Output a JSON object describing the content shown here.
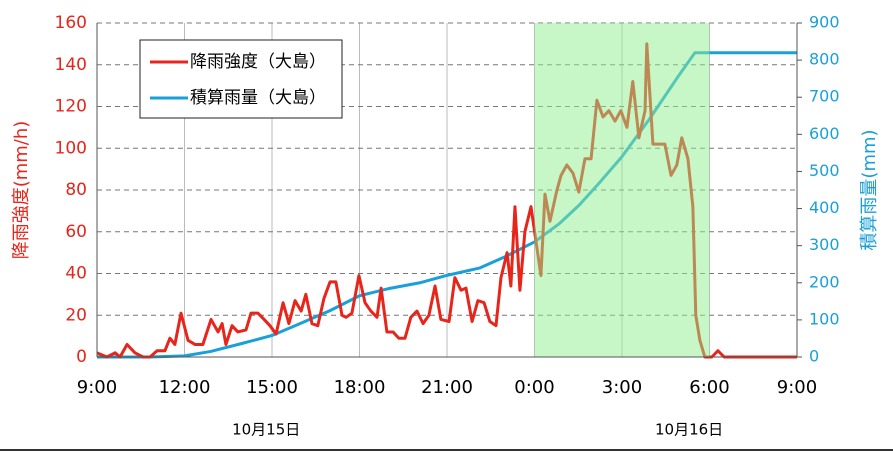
{
  "chart_data": {
    "type": "line",
    "xlim": [
      0,
      24
    ],
    "xticks": [
      {
        "value": 0,
        "label": "9:00"
      },
      {
        "value": 3,
        "label": "12:00"
      },
      {
        "value": 6,
        "label": "15:00"
      },
      {
        "value": 9,
        "label": "18:00"
      },
      {
        "value": 12,
        "label": "21:00"
      },
      {
        "value": 15,
        "label": "0:00"
      },
      {
        "value": 18,
        "label": "3:00"
      },
      {
        "value": 21,
        "label": "6:00"
      },
      {
        "value": 24,
        "label": "9:00"
      }
    ],
    "ylim": [
      0,
      160
    ],
    "yticks": [
      0,
      20,
      40,
      60,
      80,
      100,
      120,
      140,
      160
    ],
    "y2lim": [
      0,
      900
    ],
    "y2ticks": [
      0,
      100,
      200,
      300,
      400,
      500,
      600,
      700,
      800,
      900
    ],
    "ylabel": "降雨強度(mm/h)",
    "y2label": "積算雨量(mm)",
    "grid": true,
    "legend": "upper left",
    "highlight": {
      "range": [
        15,
        21
      ],
      "color": "#90ee90"
    },
    "annotations": [
      {
        "x": 5.8,
        "text": "10月15日"
      },
      {
        "x": 20.3,
        "text": "10月16日"
      }
    ],
    "series": [
      {
        "name": "降雨強度（大島）",
        "color": "#e8251b",
        "axis": "y",
        "x": [
          0,
          0.34,
          0.62,
          0.79,
          1.03,
          1.3,
          1.58,
          1.82,
          2.06,
          2.33,
          2.5,
          2.67,
          2.88,
          3.12,
          3.36,
          3.63,
          3.91,
          4.15,
          4.29,
          4.42,
          4.63,
          4.83,
          5.11,
          5.28,
          5.52,
          5.73,
          5.93,
          6.14,
          6.38,
          6.58,
          6.79,
          7.0,
          7.16,
          7.37,
          7.57,
          7.78,
          7.99,
          8.19,
          8.4,
          8.54,
          8.74,
          8.98,
          9.19,
          9.39,
          9.6,
          9.74,
          9.94,
          10.15,
          10.35,
          10.56,
          10.76,
          10.97,
          11.18,
          11.38,
          11.59,
          11.79,
          12.07,
          12.27,
          12.48,
          12.65,
          12.86,
          13.06,
          13.27,
          13.47,
          13.68,
          13.85,
          14.06,
          14.19,
          14.33,
          14.5,
          14.67,
          14.88,
          15.22,
          15.36,
          15.53,
          15.77,
          15.91,
          16.11,
          16.32,
          16.52,
          16.73,
          16.94,
          17.14,
          17.35,
          17.55,
          17.76,
          17.96,
          18.17,
          18.37,
          18.58,
          18.79,
          18.85,
          19.06,
          19.27,
          19.47,
          19.68,
          19.88,
          20.05,
          20.26,
          20.43,
          20.53,
          20.67,
          20.84,
          21.08,
          21.29,
          21.5,
          24
        ],
        "values": [
          2,
          0,
          2,
          0,
          6,
          2,
          0,
          0,
          3,
          3,
          9,
          6,
          21,
          8,
          6,
          6,
          18,
          12,
          16,
          6,
          15,
          12,
          13,
          21,
          21,
          18,
          15,
          11,
          26,
          16,
          27,
          22,
          30,
          16,
          15,
          28,
          36,
          36,
          20,
          19,
          21,
          39,
          26,
          22,
          19,
          33,
          12,
          12,
          9,
          9,
          19,
          22,
          16,
          20,
          34,
          18,
          17,
          38,
          32,
          33,
          17,
          27,
          26,
          17,
          15,
          38,
          50,
          34,
          72,
          32,
          60,
          72,
          39,
          78,
          65,
          80,
          87,
          92,
          88,
          79,
          95,
          95,
          123,
          115,
          118,
          113,
          118,
          110,
          132,
          105,
          118,
          150,
          102,
          102,
          102,
          87,
          92,
          105,
          95,
          72,
          20,
          8,
          0,
          0,
          3,
          0,
          0
        ]
      },
      {
        "name": "積算雨量（大島）",
        "color": "#1aa0d8",
        "axis": "y2",
        "x": [
          0,
          1.82,
          3.0,
          3.9,
          4.9,
          6.0,
          6.96,
          7.99,
          9.0,
          10.04,
          11.07,
          12.0,
          13.13,
          13.99,
          15.0,
          15.86,
          16.54,
          17.23,
          18.0,
          18.93,
          19.96,
          20.5,
          21.0,
          24
        ],
        "values": [
          0,
          0,
          3,
          15,
          35,
          58,
          90,
          125,
          165,
          185,
          200,
          220,
          240,
          270,
          310,
          360,
          410,
          470,
          540,
          640,
          760,
          820,
          820,
          820
        ]
      }
    ]
  }
}
